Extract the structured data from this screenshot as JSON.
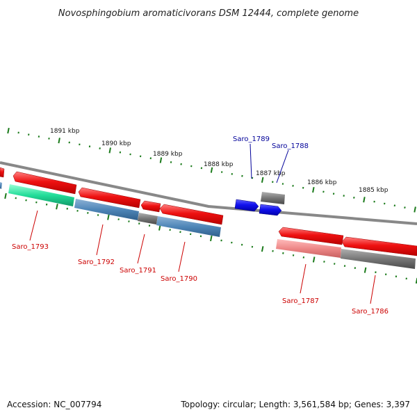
{
  "title": "Novosphingobium aromaticivorans DSM 12444, complete genome",
  "footer": {
    "accession": "Accession: NC_007794",
    "topology": "Topology: circular; Length: 3,561,584 bp; Genes: 3,397"
  },
  "colors": {
    "background": "#ffffff",
    "backbone": "#888888",
    "tick": "#1a7a1a",
    "forward_gene": "#ee1111",
    "reverse_gene": "#1111ee",
    "steelblue_feature": "#4f86b8",
    "teal_feature": "#22dd99",
    "pink_feature": "#ee8888",
    "gray_feature": "#777777",
    "label_red": "#cc0000",
    "label_blue": "#000099"
  },
  "kbp_labels": [
    "1891 kbp",
    "1890 kbp",
    "1889 kbp",
    "1888 kbp",
    "1887 kbp",
    "1886 kbp",
    "1885 kbp"
  ],
  "gene_labels": [
    {
      "text": "Saro_1793",
      "color": "red"
    },
    {
      "text": "Saro_1792",
      "color": "red"
    },
    {
      "text": "Saro_1791",
      "color": "red"
    },
    {
      "text": "Saro_1790",
      "color": "red"
    },
    {
      "text": "Saro_1789",
      "color": "blue"
    },
    {
      "text": "Saro_1788",
      "color": "blue"
    },
    {
      "text": "Saro_1787",
      "color": "red"
    },
    {
      "text": "Saro_1786",
      "color": "red"
    }
  ]
}
